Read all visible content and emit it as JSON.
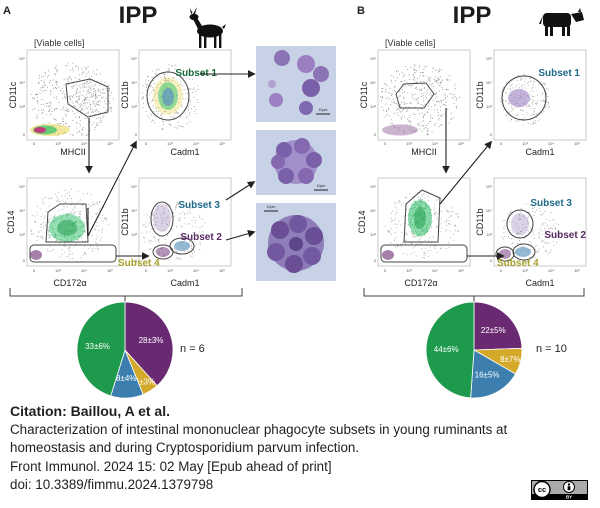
{
  "panels": [
    {
      "letter": "A",
      "title": "IPP",
      "viable_cells": "[Viable cells]",
      "axes": {
        "p1_y": "CD11c",
        "p1_x": "MHCII",
        "p2_y": "CD11b",
        "p2_x": "Cadm1",
        "p3_y": "CD14",
        "p3_x": "CD172α",
        "p4_y": "CD11b",
        "p4_x": "Cadm1"
      },
      "ticks": {
        "p1_y": [
          "10⁵",
          "10⁴",
          "10³",
          "0"
        ],
        "p1_x": [
          "0",
          "10³",
          "10⁴",
          "10⁵"
        ],
        "p2_y": [
          "10⁵",
          "10⁴",
          "10³",
          "0"
        ],
        "p2_x": [
          "0",
          "10³",
          "10⁴",
          "10⁵"
        ],
        "p3_y": [
          "10⁵",
          "10⁴",
          "10³",
          "0"
        ],
        "p3_x": [
          "0",
          "10³",
          "10⁴",
          "10⁵"
        ],
        "p4_y": [
          "10⁵",
          "10⁴",
          "10³",
          "0"
        ],
        "p4_x": [
          "0",
          "10³",
          "10⁴",
          "10⁵"
        ]
      },
      "subsets": {
        "s1": "Subset 1",
        "s2": "Subset 2",
        "s3": "Subset 3",
        "s4": "Subset 4"
      },
      "scale_bar": "10µm",
      "pie": {
        "n_label": "n = 6",
        "slices": [
          {
            "label": "28±3%",
            "value": 28,
            "color": "#6a2a72"
          },
          {
            "label": "4±3%",
            "value": 4,
            "color": "#d4a92a"
          },
          {
            "label": "8±4%",
            "value": 8,
            "color": "#3c7fae"
          },
          {
            "label": "33±6%",
            "value": 33,
            "color": "#1d9a4b"
          }
        ]
      }
    },
    {
      "letter": "B",
      "title": "IPP",
      "viable_cells": "[Viable cells]",
      "axes": {
        "p1_y": "CD11c",
        "p1_x": "MHCII",
        "p2_y": "CD11b",
        "p2_x": "Cadm1",
        "p3_y": "CD14",
        "p3_x": "CD172α",
        "p4_y": "CD11b",
        "p4_x": "Cadm1"
      },
      "ticks": {
        "p1_y": [
          "10⁵",
          "10⁴",
          "10³",
          "0"
        ],
        "p1_x": [
          "0",
          "10³",
          "10⁴",
          "10⁵"
        ],
        "p2_y": [
          "10⁵",
          "10⁴",
          "10³",
          "0"
        ],
        "p2_x": [
          "0",
          "10³",
          "10⁴",
          "10⁵"
        ],
        "p3_y": [
          "10⁵",
          "10⁴",
          "10³",
          "0"
        ],
        "p3_x": [
          "0",
          "10³",
          "10⁴",
          "10⁵"
        ],
        "p4_y": [
          "10⁵",
          "10⁴",
          "10³",
          "0"
        ],
        "p4_x": [
          "0",
          "10³",
          "10⁴",
          "10⁵"
        ]
      },
      "subsets": {
        "s1": "Subset 1",
        "s2": "Subset 2",
        "s3": "Subset 3",
        "s4": "Subset 4"
      },
      "pie": {
        "n_label": "n = 10",
        "slices": [
          {
            "label": "22±5%",
            "value": 22,
            "color": "#6a2a72"
          },
          {
            "label": "8±7%",
            "value": 8,
            "color": "#d4a92a"
          },
          {
            "label": "16±5%",
            "value": 16,
            "color": "#3c7fae"
          },
          {
            "label": "44±6%",
            "value": 44,
            "color": "#1d9a4b"
          }
        ]
      }
    }
  ],
  "citation": {
    "label": "Citation: Baillou, A et al.",
    "title_line1": "Characterization of intestinal mononuclear phagocyte subsets in young ruminants at",
    "title_line2": "homeostasis and during Cryptosporidium parvum infection.",
    "journal": "Front Immunol. 2024 15: 02 May [Epub ahead of print]",
    "doi": "doi: 10.3389/fimmu.2024.1379798"
  },
  "license": {
    "cc": "cc",
    "by": "BY"
  },
  "colors": {
    "subset1": "#1a6b3a",
    "subset2": "#5a2a63",
    "subset3": "#1f6a8a",
    "subset4": "#a8a02a",
    "dense": "#cc2c7a",
    "sparse": "#3a3a3a",
    "cytospin_bg": "#c8d2e6"
  }
}
